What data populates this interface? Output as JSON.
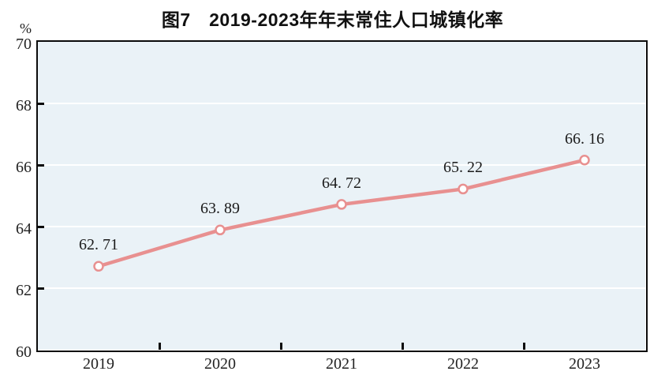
{
  "title": "图7　2019-2023年年末常住人口城镇化率",
  "chart_data": {
    "type": "line",
    "title": "图7　2019-2023年年末常住人口城镇化率",
    "categories": [
      "2019",
      "2020",
      "2021",
      "2022",
      "2023"
    ],
    "values": [
      62.71,
      63.89,
      64.72,
      65.22,
      66.16
    ],
    "point_labels": [
      "62. 71",
      "63. 89",
      "64. 72",
      "65. 22",
      "66. 16"
    ],
    "xlabel": "",
    "ylabel": "",
    "y_unit": "%",
    "ylim": [
      60,
      70
    ],
    "y_ticks": [
      60,
      62,
      64,
      66,
      68,
      70
    ],
    "grid": true,
    "legend": "none",
    "colors": {
      "line": "#e89090",
      "marker_fill": "#ffffff",
      "plot_background": "#eaf2f7",
      "grid_line": "#ffffff",
      "frame": "#0b0b0b",
      "text": "#222222"
    }
  }
}
